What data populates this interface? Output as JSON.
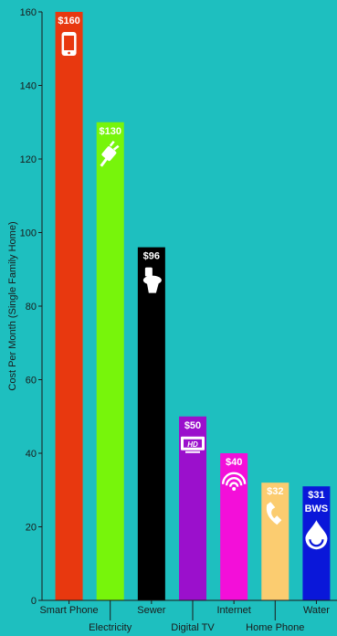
{
  "chart_data": {
    "type": "bar",
    "categories": [
      "Smart Phone",
      "Electricity",
      "Sewer",
      "Digital TV",
      "Internet",
      "Home Phone",
      "Water"
    ],
    "values": [
      160,
      130,
      96,
      50,
      40,
      32,
      31
    ],
    "value_labels": [
      "$160",
      "$130",
      "$96",
      "$50",
      "$40",
      "$32",
      "$31"
    ],
    "colors": [
      "#e8380f",
      "#77f50b",
      "#000000",
      "#9b10cc",
      "#f30fd9",
      "#fbcc70",
      "#0a17d9"
    ],
    "icons": [
      "smartphone-icon",
      "plug-icon",
      "toilet-icon",
      "hd-tv-icon",
      "wifi-icon",
      "phone-icon",
      "water-drop-icon"
    ],
    "extra_text": {
      "water": "BWS"
    },
    "ylabel": "Cost Per Month (Single Family Home)",
    "yticks": [
      0,
      20,
      40,
      60,
      80,
      100,
      120,
      140,
      160
    ],
    "ylim": [
      0,
      160
    ],
    "grid": false,
    "legend": "none"
  }
}
